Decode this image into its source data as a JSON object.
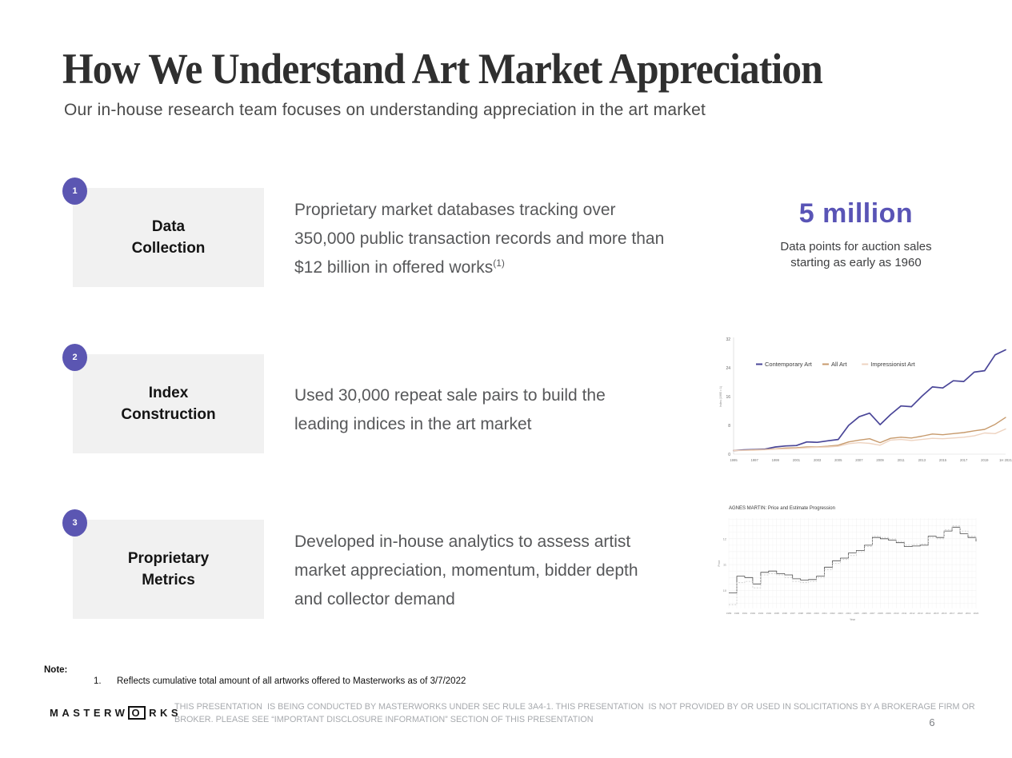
{
  "slide": {
    "title": "How We Understand Art Market Appreciation",
    "subtitle": "Our in-house research team focuses on understanding appreciation in the art market",
    "page_number": "6"
  },
  "rows": [
    {
      "number": "1",
      "label_lines": [
        "Data",
        "Collection"
      ],
      "description_lines": [
        "Proprietary market databases tracking over",
        "350,000 public transaction records and more than",
        "$12 billion in offered works"
      ],
      "footnote_ref": "(1)",
      "stat": {
        "value": "5 million",
        "caption_lines": [
          "Data points for auction sales",
          "starting as early as 1960"
        ]
      }
    },
    {
      "number": "2",
      "label_lines": [
        "Index",
        "Construction"
      ],
      "description_lines": [
        "Used 30,000 repeat sale pairs to build the",
        "leading indices in the art market"
      ]
    },
    {
      "number": "3",
      "label_lines": [
        "Proprietary",
        "Metrics"
      ],
      "description_lines": [
        "Developed in-house analytics to assess artist",
        "market appreciation, momentum, bidder depth",
        "and collector demand"
      ]
    }
  ],
  "note": {
    "label": "Note:",
    "item_number": "1.",
    "item_text": "Reflects cumulative total amount of all artworks offered to Masterworks as of 3/7/2022"
  },
  "footer": {
    "logo_prefix": "MASTERW",
    "logo_o": "O",
    "logo_suffix": "RKS",
    "disclaimer": "THIS PRESENTATION  IS BEING CONDUCTED BY MASTERWORKS UNDER SEC RULE 3A4-1. THIS PRESENTATION  IS NOT PROVIDED BY OR USED IN SOLICITATIONS BY A BROKERAGE FIRM OR BROKER. PLEASE SEE “IMPORTANT DISCLOSURE INFORMATION” SECTION OF THIS PRESENTATION"
  },
  "colors": {
    "accent_purple": "#5b56b2",
    "stat_purple": "#5954b6",
    "contemporary_art": "#4a4698",
    "all_art": "#c79a6c",
    "impressionist_art": "#eed3c0",
    "price_line": "#4a4a4a",
    "estimate_line": "#c9c9c9",
    "box_gray": "#f1f1f1"
  },
  "chart_data": [
    {
      "id": "index-comparison",
      "type": "line",
      "ylabel": "Index (1995 = 1)",
      "ylim": [
        0,
        32
      ],
      "yticks": [
        0,
        8,
        16,
        24,
        32
      ],
      "xtick_labels": [
        "1995",
        "1997",
        "1999",
        "2001",
        "2003",
        "2005",
        "2007",
        "2009",
        "2011",
        "2013",
        "2015",
        "2017",
        "2019",
        "1H 2021"
      ],
      "x_years": [
        1995,
        1996,
        1997,
        1998,
        1999,
        2000,
        2001,
        2002,
        2003,
        2004,
        2005,
        2006,
        2007,
        2008,
        2009,
        2010,
        2011,
        2012,
        2013,
        2014,
        2015,
        2016,
        2017,
        2018,
        2019,
        2020,
        2021
      ],
      "legend_position": "inside-top-left",
      "grid": false,
      "series": [
        {
          "name": "Contemporary Art",
          "color": "#4a4698",
          "values": [
            1.0,
            1.2,
            1.3,
            1.4,
            2.0,
            2.3,
            2.4,
            3.4,
            3.3,
            3.7,
            4.1,
            8.0,
            10.4,
            11.4,
            8.2,
            11.0,
            13.4,
            13.2,
            16.1,
            18.7,
            18.4,
            20.4,
            20.2,
            22.8,
            23.2,
            27.6,
            29.0
          ]
        },
        {
          "name": "All Art",
          "color": "#c79a6c",
          "values": [
            1.0,
            1.1,
            1.2,
            1.3,
            1.5,
            1.7,
            1.8,
            2.0,
            2.0,
            2.2,
            2.5,
            3.4,
            3.9,
            4.3,
            3.2,
            4.4,
            4.7,
            4.5,
            5.0,
            5.6,
            5.4,
            5.7,
            6.0,
            6.5,
            6.9,
            8.3,
            10.2
          ]
        },
        {
          "name": "Impressionist Art",
          "color": "#eed3c0",
          "values": [
            1.0,
            1.05,
            1.1,
            1.2,
            1.4,
            1.5,
            1.6,
            1.8,
            1.9,
            2.0,
            2.2,
            2.9,
            3.2,
            3.0,
            2.5,
            3.9,
            4.1,
            3.8,
            4.1,
            4.4,
            4.3,
            4.5,
            4.7,
            5.1,
            5.9,
            5.7,
            7.0
          ]
        }
      ]
    },
    {
      "id": "price-estimate",
      "type": "step-line",
      "title": "AGNES MARTIN: Price and Estimate Progression",
      "xlabel": "Year",
      "ylabel": "Price",
      "ylim": [
        9.3,
        12.8
      ],
      "yticks": [
        10,
        11,
        12
      ],
      "grid": true,
      "x_years": [
        1989,
        1990,
        1991,
        1992,
        1993,
        1994,
        1995,
        1996,
        1997,
        1998,
        1999,
        2000,
        2001,
        2002,
        2003,
        2004,
        2005,
        2006,
        2007,
        2008,
        2009,
        2010,
        2011,
        2012,
        2013,
        2014,
        2015,
        2016,
        2017,
        2018,
        2019,
        2020
      ],
      "series": [
        {
          "name": "Price",
          "color": "#4a4a4a",
          "dash": "",
          "values": [
            9.9,
            10.55,
            10.5,
            10.25,
            10.7,
            10.75,
            10.65,
            10.6,
            10.45,
            10.4,
            10.42,
            10.55,
            10.9,
            11.15,
            11.25,
            11.45,
            11.55,
            11.75,
            12.05,
            12.0,
            11.95,
            11.85,
            11.7,
            11.72,
            11.75,
            12.1,
            12.05,
            12.3,
            12.45,
            12.2,
            12.05,
            11.9
          ]
        },
        {
          "name": "Estimate",
          "color": "#c9c9c9",
          "dash": "2 1.6",
          "values": [
            9.45,
            10.3,
            10.35,
            10.1,
            10.6,
            10.65,
            10.6,
            10.5,
            10.35,
            10.3,
            10.35,
            10.5,
            10.8,
            11.05,
            11.2,
            11.35,
            11.5,
            11.7,
            12.1,
            12.05,
            12.0,
            11.9,
            11.75,
            11.78,
            11.8,
            12.05,
            12.0,
            12.35,
            12.5,
            12.3,
            12.1,
            11.98
          ]
        }
      ]
    }
  ]
}
